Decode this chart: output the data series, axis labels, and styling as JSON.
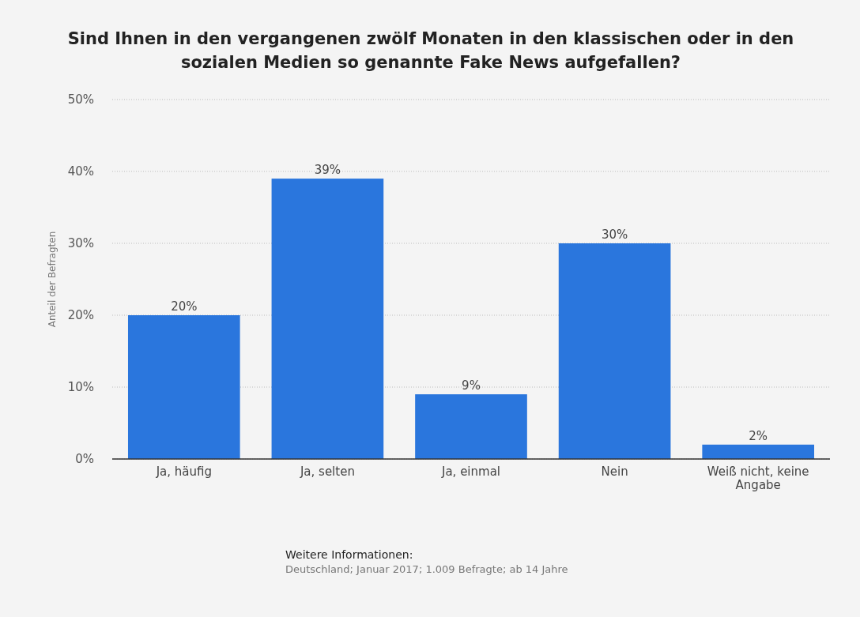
{
  "chart_data": {
    "type": "bar",
    "title": "Sind Ihnen in den vergangenen zwölf Monaten in den klassischen oder in den sozialen Medien so genannte Fake News aufgefallen?",
    "ylabel": "Anteil der Befragten",
    "categories": [
      "Ja, häufig",
      "Ja, selten",
      "Ja, einmal",
      "Nein",
      "Weiß nicht, keine Angabe"
    ],
    "values": [
      20,
      39,
      9,
      30,
      2
    ],
    "value_labels": [
      "20%",
      "39%",
      "9%",
      "30%",
      "2%"
    ],
    "color": "#2a76dd",
    "ylim": [
      0,
      50
    ],
    "yticks": [
      {
        "value": 0,
        "label": "0%"
      },
      {
        "value": 10,
        "label": "10%"
      },
      {
        "value": 20,
        "label": "20%"
      },
      {
        "value": 30,
        "label": "30%"
      },
      {
        "value": 40,
        "label": "40%"
      },
      {
        "value": 50,
        "label": "50%"
      }
    ],
    "grid": "y",
    "annotations": [
      "Weitere Informationen:",
      "Deutschland; Januar 2017; 1.009 Befragte; ab 14 Jahre"
    ]
  }
}
